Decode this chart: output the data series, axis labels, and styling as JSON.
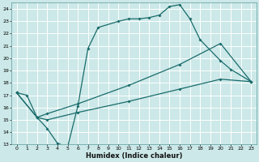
{
  "xlabel": "Humidex (Indice chaleur)",
  "bg_color": "#cce8e8",
  "grid_color": "#ffffff",
  "line_color": "#1a6b6b",
  "xlim": [
    -0.5,
    23.5
  ],
  "ylim": [
    13,
    24.5
  ],
  "xticks": [
    0,
    1,
    2,
    3,
    4,
    5,
    6,
    7,
    8,
    9,
    10,
    11,
    12,
    13,
    14,
    15,
    16,
    17,
    18,
    19,
    20,
    21,
    22,
    23
  ],
  "yticks": [
    13,
    14,
    15,
    16,
    17,
    18,
    19,
    20,
    21,
    22,
    23,
    24
  ],
  "series1": [
    [
      0,
      17.2
    ],
    [
      1,
      17.0
    ],
    [
      2,
      15.2
    ],
    [
      3,
      14.3
    ],
    [
      4,
      13.1
    ],
    [
      5,
      12.8
    ],
    [
      6,
      16.1
    ],
    [
      7,
      20.8
    ],
    [
      8,
      22.5
    ],
    [
      10,
      23.0
    ],
    [
      11,
      23.2
    ],
    [
      12,
      23.2
    ],
    [
      13,
      23.3
    ],
    [
      14,
      23.5
    ],
    [
      15,
      24.2
    ],
    [
      16,
      24.35
    ],
    [
      17,
      23.2
    ],
    [
      18,
      21.5
    ],
    [
      20,
      19.8
    ],
    [
      21,
      19.1
    ],
    [
      23,
      18.1
    ]
  ],
  "series2": [
    [
      0,
      17.2
    ],
    [
      2,
      15.2
    ],
    [
      3,
      15.5
    ],
    [
      6,
      16.3
    ],
    [
      11,
      17.8
    ],
    [
      16,
      19.5
    ],
    [
      20,
      21.2
    ],
    [
      23,
      18.1
    ]
  ],
  "series3": [
    [
      0,
      17.2
    ],
    [
      2,
      15.2
    ],
    [
      3,
      15.0
    ],
    [
      6,
      15.6
    ],
    [
      11,
      16.5
    ],
    [
      16,
      17.5
    ],
    [
      20,
      18.3
    ],
    [
      23,
      18.1
    ]
  ]
}
